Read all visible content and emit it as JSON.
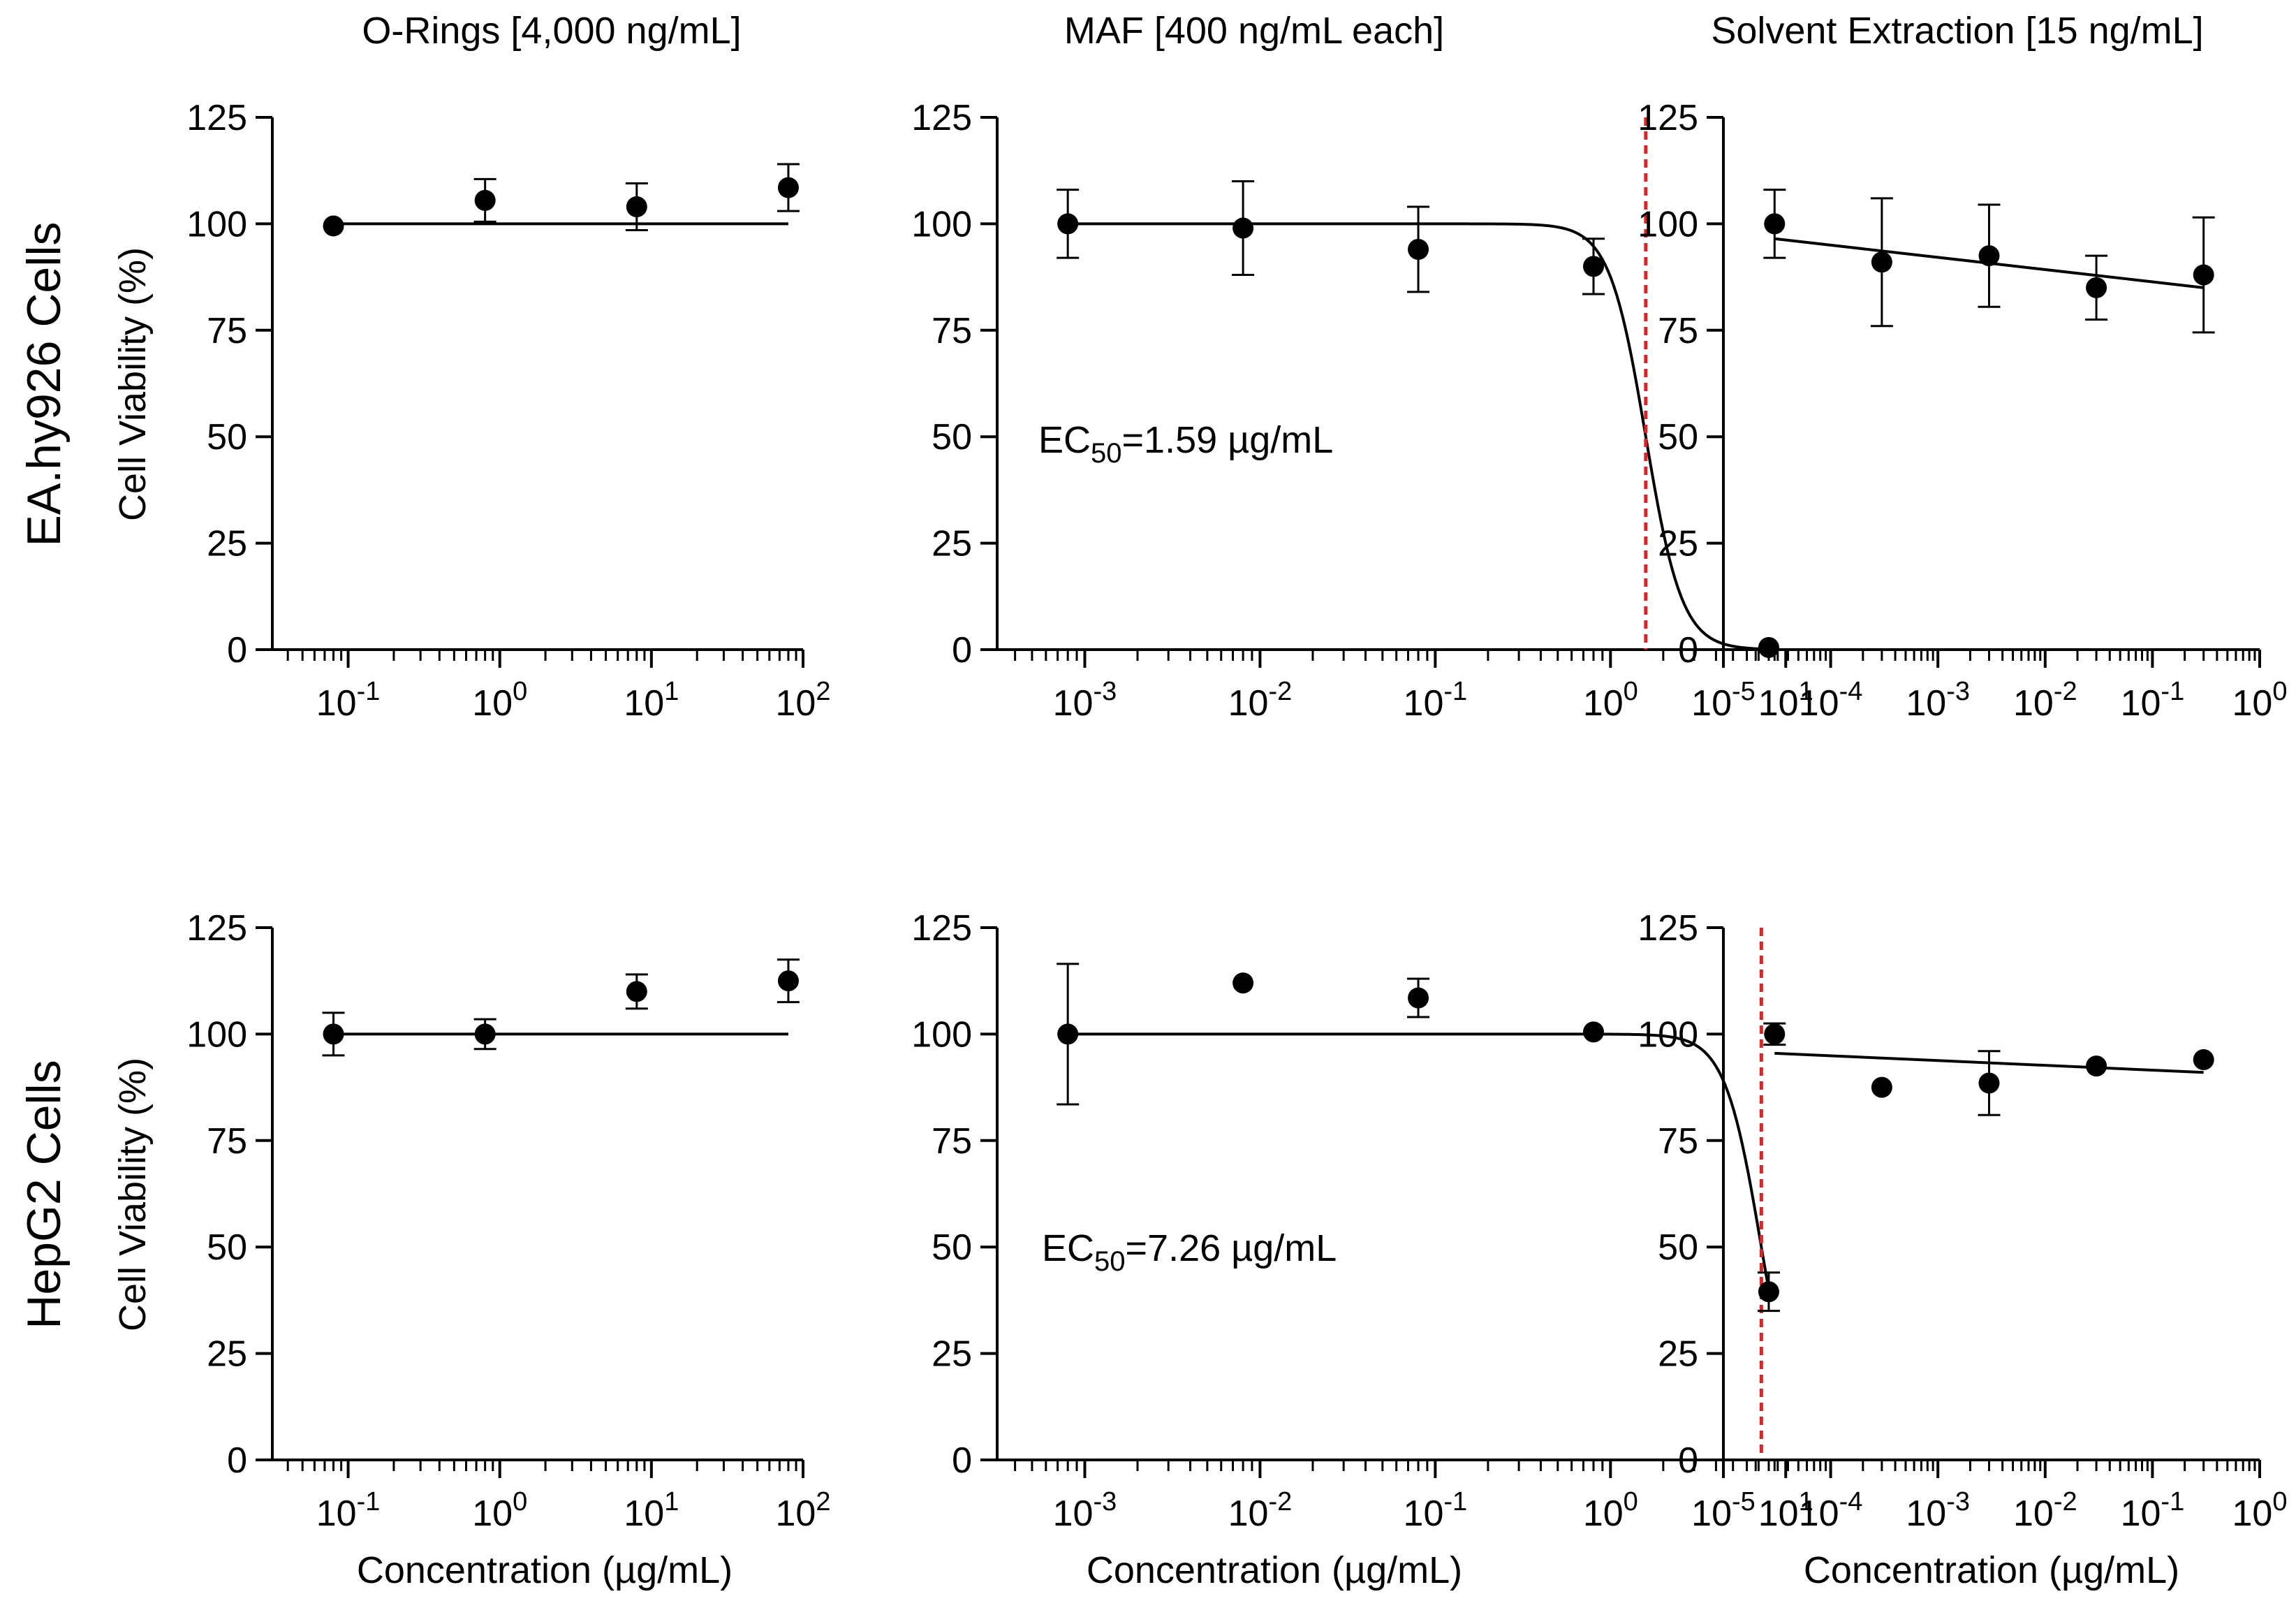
{
  "figure": {
    "column_titles": [
      "O-Rings [4,000 ng/mL]",
      "MAF [400 ng/mL each]",
      "Solvent Extraction [15 ng/mL]"
    ],
    "row_labels": [
      "EA.hy926 Cells",
      "HepG2 Cells"
    ],
    "ylabel": "Cell Viability (%)",
    "xlabel": "Concentration (µg/mL)",
    "colors": {
      "data": "#000000",
      "ec50_line": "#d62728"
    }
  },
  "chart_data": [
    {
      "type": "scatter",
      "row": 0,
      "col": 0,
      "title": "O-Rings [4,000 ng/mL]",
      "row_label": "EA.hy926 Cells",
      "xscale": "log",
      "xlim_log10": [
        -1.5,
        2
      ],
      "x_ticks_log10": [
        -1,
        0,
        1,
        2
      ],
      "ylim": [
        0,
        125
      ],
      "y_ticks": [
        0,
        25,
        50,
        75,
        100,
        125
      ],
      "xlabel": "",
      "ylabel": "Cell Viability (%)",
      "points": [
        {
          "x": 0.08,
          "y": 99.5,
          "err": 0
        },
        {
          "x": 0.8,
          "y": 105.5,
          "err": 5
        },
        {
          "x": 8,
          "y": 104,
          "err": 5.5
        },
        {
          "x": 80,
          "y": 108.5,
          "err": 5.5
        }
      ],
      "fit": {
        "model": "constant",
        "top": 100,
        "x_range": [
          0.08,
          80
        ]
      }
    },
    {
      "type": "scatter",
      "row": 0,
      "col": 1,
      "title": "MAF [400 ng/mL each]",
      "row_label": "EA.hy926 Cells",
      "xscale": "log",
      "xlim_log10": [
        -3.5,
        1.25
      ],
      "x_ticks_log10": [
        -3,
        -2,
        -1,
        0,
        1
      ],
      "ylim": [
        0,
        125
      ],
      "y_ticks": [
        0,
        25,
        50,
        75,
        100,
        125
      ],
      "xlabel": "",
      "ylabel": "",
      "points": [
        {
          "x": 0.0008,
          "y": 100,
          "err": 8
        },
        {
          "x": 0.008,
          "y": 99,
          "err": 11
        },
        {
          "x": 0.08,
          "y": 94,
          "err": 10
        },
        {
          "x": 0.8,
          "y": 90,
          "err": 6.5
        },
        {
          "x": 8,
          "y": 0.5,
          "err": 0
        }
      ],
      "fit": {
        "model": "logistic",
        "top": 100,
        "bottom": 0,
        "ec50": 1.59,
        "hill": 4.2,
        "x_range": [
          0.0008,
          8
        ]
      },
      "ec50_line": 1.59,
      "annotation": {
        "prefix": "EC",
        "sub": "50",
        "suffix": "=1.59 µg/mL"
      }
    },
    {
      "type": "scatter",
      "row": 0,
      "col": 2,
      "title": "Solvent Extraction [15 ng/mL]",
      "row_label": "EA.hy926 Cells",
      "xscale": "log",
      "xlim_log10": [
        -5,
        0
      ],
      "x_ticks_log10": [
        -5,
        -4,
        -3,
        -2,
        -1,
        0
      ],
      "ylim": [
        0,
        125
      ],
      "y_ticks": [
        0,
        25,
        50,
        75,
        100,
        125
      ],
      "xlabel": "",
      "ylabel": "",
      "points": [
        {
          "x": 3e-05,
          "y": 100,
          "err": 8
        },
        {
          "x": 0.0003,
          "y": 91,
          "err": 15
        },
        {
          "x": 0.003,
          "y": 92.5,
          "err": 12
        },
        {
          "x": 0.03,
          "y": 85,
          "err": 7.5
        },
        {
          "x": 0.3,
          "y": 88,
          "err": 13.5
        }
      ],
      "fit": {
        "model": "linear_log",
        "x_range": [
          3e-05,
          0.3
        ],
        "y_range": [
          96.5,
          85
        ]
      }
    },
    {
      "type": "scatter",
      "row": 1,
      "col": 0,
      "title": "O-Rings [4,000 ng/mL]",
      "row_label": "HepG2 Cells",
      "xscale": "log",
      "xlim_log10": [
        -1.5,
        2
      ],
      "x_ticks_log10": [
        -1,
        0,
        1,
        2
      ],
      "ylim": [
        0,
        125
      ],
      "y_ticks": [
        0,
        25,
        50,
        75,
        100,
        125
      ],
      "xlabel": "Concentration (µg/mL)",
      "ylabel": "Cell Viability (%)",
      "points": [
        {
          "x": 0.08,
          "y": 100,
          "err": 5
        },
        {
          "x": 0.8,
          "y": 100,
          "err": 3.5
        },
        {
          "x": 8,
          "y": 110,
          "err": 4
        },
        {
          "x": 80,
          "y": 112.5,
          "err": 5
        }
      ],
      "fit": {
        "model": "constant",
        "top": 100,
        "x_range": [
          0.08,
          80
        ]
      }
    },
    {
      "type": "scatter",
      "row": 1,
      "col": 1,
      "title": "MAF [400 ng/mL each]",
      "row_label": "HepG2 Cells",
      "xscale": "log",
      "xlim_log10": [
        -3.5,
        1.25
      ],
      "x_ticks_log10": [
        -3,
        -2,
        -1,
        0,
        1
      ],
      "ylim": [
        0,
        125
      ],
      "y_ticks": [
        0,
        25,
        50,
        75,
        100,
        125
      ],
      "xlabel": "Concentration (µg/mL)",
      "ylabel": "",
      "points": [
        {
          "x": 0.0008,
          "y": 100,
          "err": 16.5
        },
        {
          "x": 0.008,
          "y": 112,
          "err": 0
        },
        {
          "x": 0.08,
          "y": 108.5,
          "err": 4.5
        },
        {
          "x": 0.8,
          "y": 100.5,
          "err": 0
        },
        {
          "x": 8,
          "y": 39.5,
          "err": 4.5
        }
      ],
      "fit": {
        "model": "logistic",
        "top": 100,
        "bottom": 0,
        "ec50": 7.26,
        "hill": 4.2,
        "x_range": [
          0.0008,
          8
        ]
      },
      "ec50_line": 7.26,
      "annotation": {
        "prefix": "EC",
        "sub": "50",
        "suffix": "=7.26 µg/mL"
      }
    },
    {
      "type": "scatter",
      "row": 1,
      "col": 2,
      "title": "Solvent Extraction [15 ng/mL]",
      "row_label": "HepG2 Cells",
      "xscale": "log",
      "xlim_log10": [
        -5,
        0
      ],
      "x_ticks_log10": [
        -5,
        -4,
        -3,
        -2,
        -1,
        0
      ],
      "ylim": [
        0,
        125
      ],
      "y_ticks": [
        0,
        25,
        50,
        75,
        100,
        125
      ],
      "xlabel": "Concentration (µg/mL)",
      "ylabel": "",
      "points": [
        {
          "x": 3e-05,
          "y": 100,
          "err": 2.5
        },
        {
          "x": 0.0003,
          "y": 87.5,
          "err": 0
        },
        {
          "x": 0.003,
          "y": 88.5,
          "err": 7.5
        },
        {
          "x": 0.03,
          "y": 92.5,
          "err": 0
        },
        {
          "x": 0.3,
          "y": 94,
          "err": 0
        }
      ],
      "fit": {
        "model": "linear_log",
        "x_range": [
          3e-05,
          0.3
        ],
        "y_range": [
          95.5,
          91
        ]
      }
    }
  ]
}
